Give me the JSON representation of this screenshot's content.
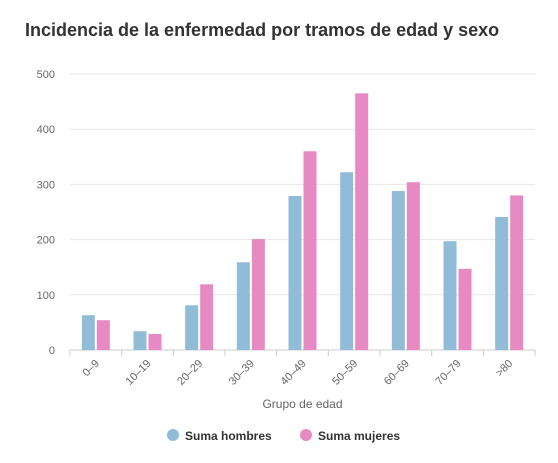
{
  "chart_data": {
    "type": "bar",
    "title": "Incidencia de la enfermedad por tramos de edad y sexo",
    "xlabel": "Grupo de edad",
    "ylabel": "",
    "ylim": [
      0,
      500
    ],
    "yticks": [
      0,
      100,
      200,
      300,
      400,
      500
    ],
    "categories": [
      "0–9",
      "10–19",
      "20–29",
      "30–39",
      "40–49",
      "50–59",
      "60–69",
      "70–79",
      ">80"
    ],
    "series": [
      {
        "name": "Suma hombres",
        "color": "#91bcd8",
        "values": [
          63,
          34,
          81,
          159,
          279,
          322,
          288,
          197,
          241
        ]
      },
      {
        "name": "Suma mujeres",
        "color": "#e78ac3",
        "values": [
          54,
          29,
          119,
          201,
          360,
          465,
          304,
          147,
          280
        ]
      }
    ],
    "grid": true,
    "legend": "bottom"
  }
}
